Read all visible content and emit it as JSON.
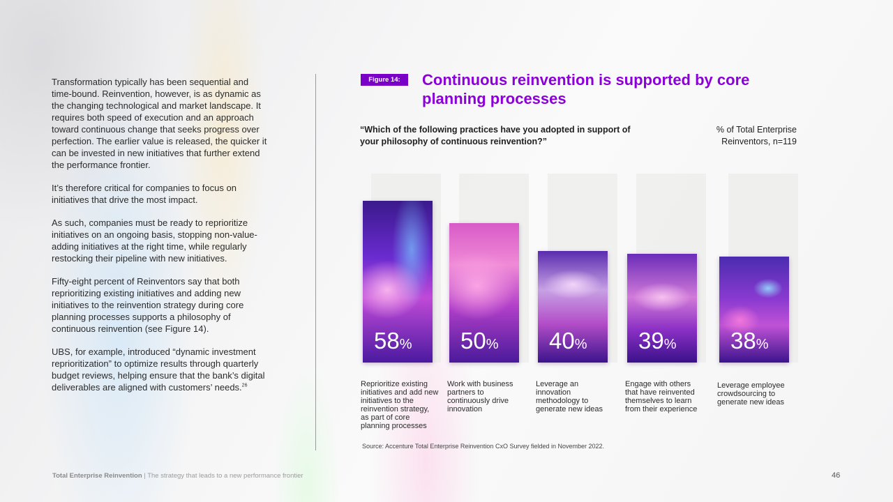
{
  "body_text": {
    "p1": "Transformation typically has been sequential and time-bound. Reinvention, however, is as dynamic as the changing technological and market landscape. It requires both speed of execution and an approach toward continuous change that seeks progress over perfection. The earlier value is released, the quicker it can be invested in new initiatives that further extend the performance frontier.",
    "p2": "It’s therefore critical for companies to focus on initiatives that drive the most impact.",
    "p3": "As such, companies must be ready to reprioritize initiatives on an ongoing basis, stopping non-value-adding initiatives at the right time, while regularly restocking their pipeline with new initiatives.",
    "p4": "Fifty-eight percent of Reinventors say that both reprioritizing existing initiatives and adding new initiatives to the reinvention strategy during core planning processes supports a philosophy of continuous reinvention (see Figure 14).",
    "p5": "UBS, for example, introduced “dynamic investment reprioritization” to optimize results through quarterly budget reviews, helping ensure that the bank’s digital deliverables are aligned with customers’ needs.",
    "p5_footnote": "26"
  },
  "figure": {
    "badge": "Figure 14:",
    "title": "Continuous reinvention is supported by core planning processes",
    "question": "“Which of the following practices have you adopted in support of your philosophy of continuous reinvention?”",
    "metric_line1": "% of Total Enterprise",
    "metric_line2": "Reinventors, n=119",
    "source": "Source: Accenture Total Enterprise Reinvention CxO Survey fielded in November 2022."
  },
  "chart_data": {
    "type": "bar",
    "unit": "%",
    "categories": [
      "Reprioritize existing initiatives and add new initiatives to the reinvention strategy, as part of core planning processes",
      "Work with business partners to continuously drive innovation",
      "Leverage an innovation methodology to generate new ideas",
      "Engage with others that have reinvented themselves to learn from their experience",
      "Leverage employee crowdsourcing to generate new ideas"
    ],
    "values": [
      58,
      50,
      40,
      39,
      38
    ],
    "ylim": [
      0,
      100
    ],
    "bar_color": "#6a1bb5",
    "track_color": "#ececea"
  },
  "footer": {
    "brand": "Total Enterprise Reinvention",
    "separator": " | ",
    "tagline": "The strategy that leads to a new performance frontier",
    "page_number": "46"
  },
  "colors": {
    "accent": "#8c00d8",
    "badge": "#7b00c7"
  }
}
